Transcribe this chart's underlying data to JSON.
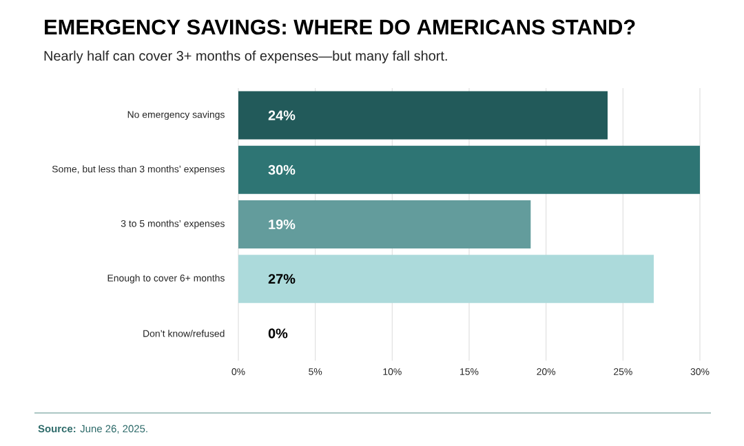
{
  "chart_data": {
    "type": "bar",
    "orientation": "horizontal",
    "title": "EMERGENCY SAVINGS: WHERE DO AMERICANS STAND?",
    "subtitle": "Nearly half can cover 3+ months of expenses—but many fall short.",
    "categories": [
      "No emergency savings",
      "Some, but less than 3 months’ expenses",
      "3 to 5 months’ expenses",
      "Enough to cover 6+ months",
      "Don’t know/refused"
    ],
    "values": [
      24,
      30,
      19,
      27,
      0
    ],
    "colors": [
      "#225a5a",
      "#2e7574",
      "#639c9c",
      "#acdadb",
      null
    ],
    "value_labels": [
      "24%",
      "30%",
      "19%",
      "27%",
      "0%"
    ],
    "xlim": [
      0,
      30
    ],
    "xticks": [
      {
        "value": 0,
        "label": "0%"
      },
      {
        "value": 5,
        "label": "5%"
      },
      {
        "value": 10,
        "label": "10%"
      },
      {
        "value": 15,
        "label": "15%"
      },
      {
        "value": 20,
        "label": "20%"
      },
      {
        "value": 25,
        "label": "25%"
      },
      {
        "value": 30,
        "label": "30%"
      }
    ],
    "grid": "x",
    "annotations": [
      "**Source:** June 26, 2025."
    ]
  }
}
